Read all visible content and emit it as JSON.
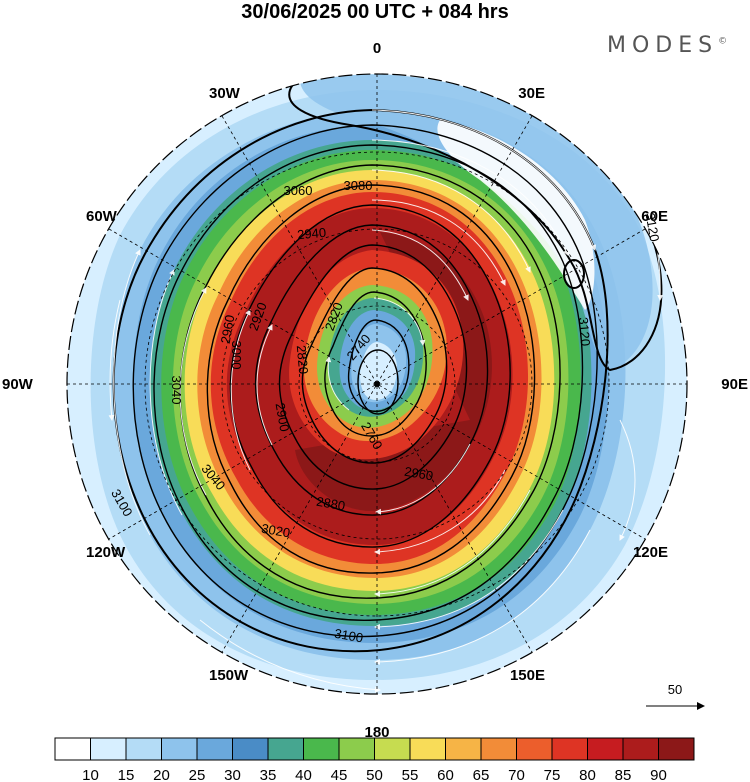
{
  "title": "30/06/2025  00 UTC  + 084 hrs",
  "logo": "MODES",
  "logo_mark": "©",
  "longitude_labels": [
    {
      "id": "lon-0",
      "text": "0",
      "lon": 0
    },
    {
      "id": "lon-30e",
      "text": "30E",
      "lon": 30
    },
    {
      "id": "lon-60e",
      "text": "60E",
      "lon": 60
    },
    {
      "id": "lon-90e",
      "text": "90E",
      "lon": 90
    },
    {
      "id": "lon-120e",
      "text": "120E",
      "lon": 120
    },
    {
      "id": "lon-150e",
      "text": "150E",
      "lon": 150
    },
    {
      "id": "lon-180",
      "text": "180",
      "lon": 180
    },
    {
      "id": "lon-150w",
      "text": "150W",
      "lon": -150
    },
    {
      "id": "lon-120w",
      "text": "120W",
      "lon": -120
    },
    {
      "id": "lon-90w",
      "text": "90W",
      "lon": -90
    },
    {
      "id": "lon-60w",
      "text": "60W",
      "lon": -60
    },
    {
      "id": "lon-30w",
      "text": "30W",
      "lon": -30
    }
  ],
  "height_contours": [
    "2740",
    "2760",
    "2820",
    "2880",
    "2900",
    "2920",
    "2940",
    "2960",
    "3000",
    "3020",
    "3040",
    "3060",
    "3080",
    "3100",
    "3120"
  ],
  "contour_labels": [
    {
      "text": "2740"
    },
    {
      "text": "2760"
    },
    {
      "text": "2820"
    },
    {
      "text": "2820"
    },
    {
      "text": "2880"
    },
    {
      "text": "2900"
    },
    {
      "text": "2920"
    },
    {
      "text": "2940"
    },
    {
      "text": "2960"
    },
    {
      "text": "2960"
    },
    {
      "text": "3000"
    },
    {
      "text": "3020"
    },
    {
      "text": "3040"
    },
    {
      "text": "3040"
    },
    {
      "text": "3060"
    },
    {
      "text": "3080"
    },
    {
      "text": "3100"
    },
    {
      "text": "3100"
    },
    {
      "text": "3120"
    },
    {
      "text": "3120"
    }
  ],
  "colorbar": {
    "ticks": [
      "10",
      "15",
      "20",
      "25",
      "30",
      "35",
      "40",
      "45",
      "50",
      "55",
      "60",
      "65",
      "70",
      "75",
      "80",
      "85",
      "90"
    ],
    "colors": [
      "#ffffff",
      "#d7efff",
      "#b4dcf6",
      "#8ec3ec",
      "#6aa8dc",
      "#4a8cc6",
      "#46a690",
      "#4ab84c",
      "#8ccc4c",
      "#c6dc50",
      "#f8dc58",
      "#f6b446",
      "#f28c38",
      "#ec5e2c",
      "#de3424",
      "#c61c20",
      "#ac1c1c",
      "#8c1818"
    ]
  },
  "reference_vector": "50"
}
